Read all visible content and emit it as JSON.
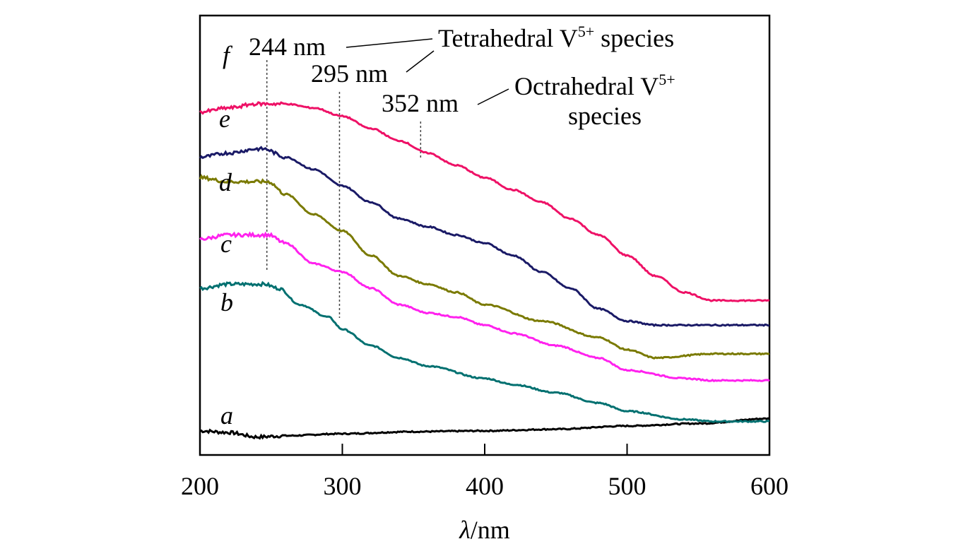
{
  "chart_data": {
    "type": "line",
    "title": "",
    "xlabel_symbol": "λ",
    "xlabel_unit": "/nm",
    "ylabel": "",
    "xlim": [
      200,
      600
    ],
    "ylim": [
      0,
      1
    ],
    "xticks": [
      200,
      300,
      400,
      500,
      600
    ],
    "xtick_labels": [
      "200",
      "300",
      "400",
      "500",
      "600"
    ],
    "grid": false,
    "legend": "none",
    "series": [
      {
        "name": "a",
        "color": "#000000",
        "x": [
          200,
          220,
          240,
          260,
          300,
          350,
          400,
          450,
          500,
          550,
          600
        ],
        "y": [
          0.052,
          0.048,
          0.037,
          0.04,
          0.045,
          0.05,
          0.052,
          0.056,
          0.064,
          0.07,
          0.082
        ]
      },
      {
        "name": "b",
        "color": "#007070",
        "x": [
          200,
          220,
          235,
          245,
          255,
          270,
          290,
          300,
          320,
          340,
          360,
          400,
          420,
          450,
          480,
          500,
          540,
          560,
          600
        ],
        "y": [
          0.4,
          0.41,
          0.41,
          0.41,
          0.4,
          0.36,
          0.33,
          0.3,
          0.26,
          0.23,
          0.21,
          0.18,
          0.165,
          0.145,
          0.12,
          0.1,
          0.08,
          0.075,
          0.075
        ]
      },
      {
        "name": "c",
        "color": "#ff22ee",
        "x": [
          200,
          220,
          240,
          248,
          260,
          280,
          300,
          320,
          340,
          360,
          380,
          400,
          420,
          450,
          480,
          500,
          540,
          560,
          600
        ],
        "y": [
          0.52,
          0.53,
          0.53,
          0.53,
          0.51,
          0.46,
          0.44,
          0.4,
          0.36,
          0.34,
          0.33,
          0.31,
          0.29,
          0.26,
          0.23,
          0.2,
          0.18,
          0.175,
          0.175
        ]
      },
      {
        "name": "d",
        "color": "#7a7a00",
        "x": [
          200,
          220,
          240,
          248,
          260,
          280,
          300,
          320,
          340,
          360,
          380,
          400,
          440,
          480,
          500,
          520,
          560,
          600
        ],
        "y": [
          0.67,
          0.66,
          0.66,
          0.66,
          0.63,
          0.58,
          0.54,
          0.48,
          0.43,
          0.41,
          0.39,
          0.36,
          0.32,
          0.28,
          0.25,
          0.23,
          0.24,
          0.24
        ]
      },
      {
        "name": "e",
        "color": "#1a1a66",
        "x": [
          200,
          220,
          240,
          245,
          260,
          280,
          300,
          320,
          340,
          360,
          380,
          400,
          420,
          440,
          460,
          480,
          500,
          520,
          560,
          600
        ],
        "y": [
          0.72,
          0.73,
          0.74,
          0.74,
          0.72,
          0.69,
          0.65,
          0.61,
          0.57,
          0.55,
          0.53,
          0.51,
          0.48,
          0.44,
          0.4,
          0.35,
          0.32,
          0.31,
          0.31,
          0.31
        ]
      },
      {
        "name": "f",
        "color": "#ee1166",
        "x": [
          200,
          220,
          240,
          250,
          260,
          280,
          300,
          320,
          340,
          360,
          380,
          400,
          420,
          440,
          460,
          480,
          500,
          520,
          540,
          560,
          600
        ],
        "y": [
          0.83,
          0.84,
          0.85,
          0.85,
          0.85,
          0.84,
          0.82,
          0.79,
          0.76,
          0.73,
          0.7,
          0.67,
          0.64,
          0.61,
          0.57,
          0.53,
          0.48,
          0.43,
          0.39,
          0.37,
          0.37
        ]
      }
    ],
    "annotations": {
      "peak_244": "244 nm",
      "peak_295": "295 nm",
      "peak_352": "352 nm",
      "tetrahedral_base": "Tetrahedral V",
      "tetrahedral_sup": "5+",
      "tetrahedral_tail": " species",
      "octahedral_base": "Octrahedral V",
      "octahedral_sup": "5+",
      "octahedral_line2": "species"
    },
    "dashed_markers_x": [
      244,
      295,
      352
    ],
    "curve_labels": [
      "a",
      "b",
      "c",
      "d",
      "e",
      "f"
    ]
  }
}
